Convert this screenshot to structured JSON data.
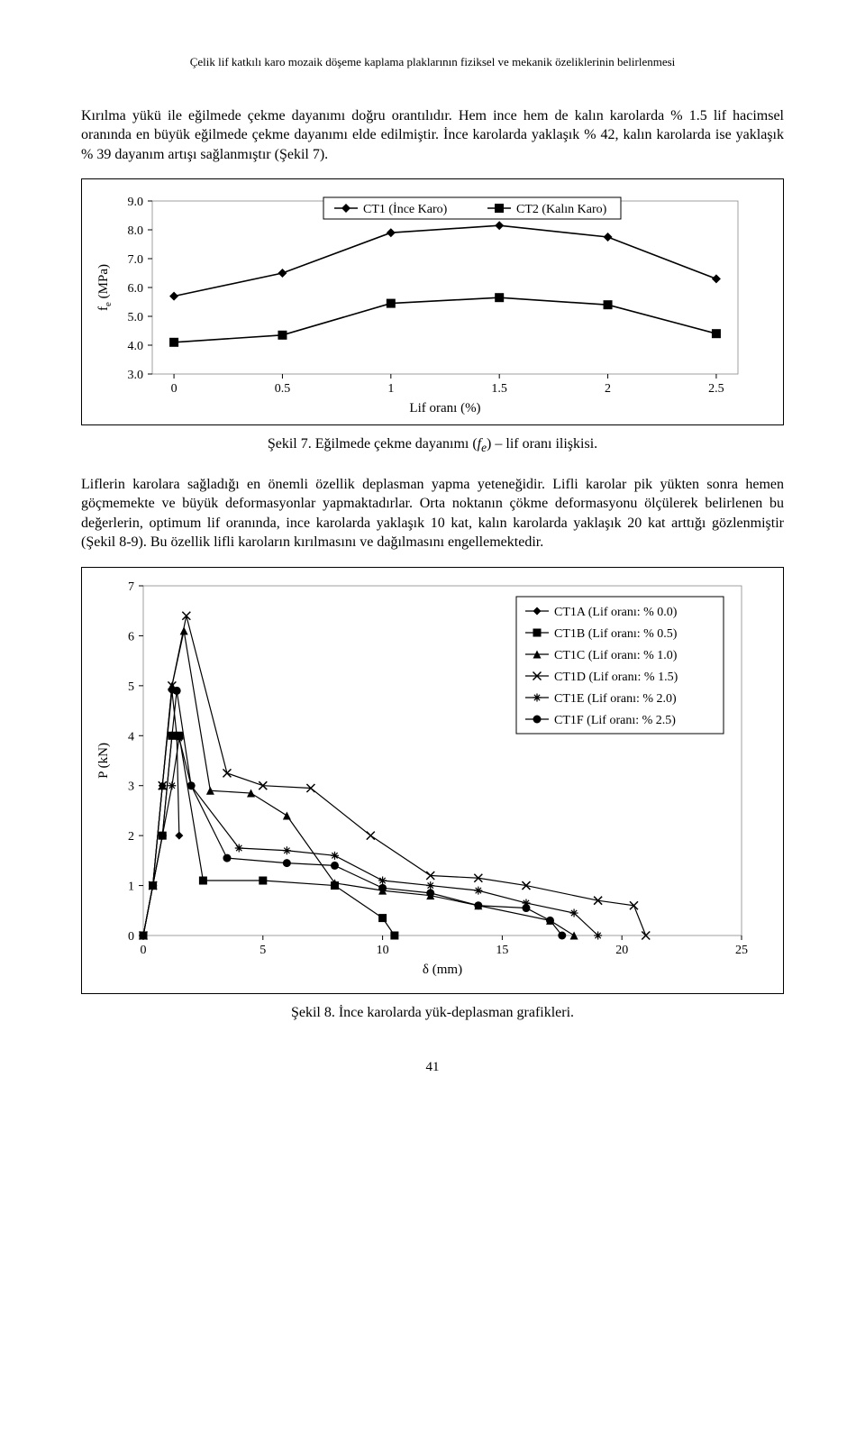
{
  "running_head": "Çelik lif katkılı karo mozaik döşeme kaplama plaklarının fiziksel ve mekanik özeliklerinin belirlenmesi",
  "para1": "Kırılma yükü ile eğilmede çekme dayanımı doğru orantılıdır. Hem ince hem de kalın karolarda % 1.5 lif hacimsel oranında en büyük eğilmede çekme dayanımı elde edilmiştir. İnce karolarda yaklaşık % 42, kalın karolarda ise yaklaşık % 39 dayanım artışı sağlanmıştır   (Şekil 7).",
  "para2": "Liflerin karolara sağladığı en önemli özellik deplasman yapma yeteneğidir. Lifli karolar pik yükten sonra hemen göçmemekte ve büyük deformasyonlar yapmaktadırlar. Orta noktanın çökme deformasyonu ölçülerek belirlenen bu değerlerin, optimum lif oranında, ince karolarda yaklaşık 10 kat, kalın karolarda yaklaşık 20 kat arttığı gözlenmiştir (Şekil 8-9). Bu özellik lifli karoların kırılmasını ve dağılmasını engellemektedir.",
  "fig7_caption_pre": "Şekil 7. Eğilmede çekme dayanımı (",
  "fig7_caption_fe": "f",
  "fig7_caption_sub": "e",
  "fig7_caption_post": ") – lif oranı ilişkisi.",
  "fig8_caption": "Şekil 8. İnce karolarda yük-deplasman grafikleri.",
  "page_number": "41",
  "chart1": {
    "type": "line",
    "xlabel": "Lif oranı (%)",
    "ylabel": "f",
    "ylabel_sub": "e",
    "ylabel_unit": " (MPa)",
    "xlim": [
      -0.1,
      2.6
    ],
    "ylim": [
      3.0,
      9.0
    ],
    "xticks": [
      0,
      0.5,
      1,
      1.5,
      2,
      2.5
    ],
    "xtick_labels": [
      "0",
      "0.5",
      "1",
      "1.5",
      "2",
      "2.5"
    ],
    "yticks": [
      3.0,
      4.0,
      5.0,
      6.0,
      7.0,
      8.0,
      9.0
    ],
    "ytick_labels": [
      "3.0",
      "4.0",
      "5.0",
      "6.0",
      "7.0",
      "8.0",
      "9.0"
    ],
    "series": [
      {
        "name": "CT1 (İnce Karo)",
        "marker": "diamond",
        "x": [
          0,
          0.5,
          1,
          1.5,
          2,
          2.5
        ],
        "y": [
          5.7,
          6.5,
          7.9,
          8.15,
          7.75,
          6.3
        ]
      },
      {
        "name": "CT2 (Kalın Karo)",
        "marker": "square",
        "x": [
          0,
          0.5,
          1,
          1.5,
          2,
          2.5
        ],
        "y": [
          4.1,
          4.35,
          5.45,
          5.65,
          5.4,
          4.4
        ]
      }
    ],
    "line_color": "#000000",
    "marker_fill": "#000000",
    "marker_size": 10,
    "line_width": 1.6,
    "background_color": "#ffffff",
    "axis_fontsize": 14,
    "label_fontsize": 15
  },
  "chart2": {
    "type": "line",
    "xlabel": "δ (mm)",
    "ylabel": "P (kN)",
    "xlim": [
      0,
      25
    ],
    "ylim": [
      0,
      7
    ],
    "xticks": [
      0,
      5,
      10,
      15,
      20,
      25
    ],
    "xtick_labels": [
      "0",
      "5",
      "10",
      "15",
      "20",
      "25"
    ],
    "yticks": [
      0,
      1,
      2,
      3,
      4,
      5,
      6,
      7
    ],
    "ytick_labels": [
      "0",
      "1",
      "2",
      "3",
      "4",
      "5",
      "6",
      "7"
    ],
    "legend_items": [
      {
        "label": "CT1A (Lif oranı: % 0.0)",
        "marker": "diamond"
      },
      {
        "label": "CT1B (Lif oranı: % 0.5)",
        "marker": "square"
      },
      {
        "label": "CT1C (Lif oranı: % 1.0)",
        "marker": "triangle"
      },
      {
        "label": "CT1D (Lif oranı: % 1.5)",
        "marker": "x"
      },
      {
        "label": "CT1E (Lif oranı: % 2.0)",
        "marker": "asterisk"
      },
      {
        "label": "CT1F (Lif oranı: % 2.5)",
        "marker": "circle"
      }
    ],
    "series": {
      "CT1A": {
        "marker": "diamond",
        "pts": [
          [
            0,
            0
          ],
          [
            0.4,
            1.0
          ],
          [
            0.8,
            3.0
          ],
          [
            1.2,
            4.9
          ],
          [
            1.4,
            4.0
          ],
          [
            1.5,
            2.0
          ]
        ]
      },
      "CT1B": {
        "marker": "square",
        "pts": [
          [
            0,
            0
          ],
          [
            0.4,
            1.0
          ],
          [
            0.8,
            2.0
          ],
          [
            1.2,
            4.0
          ],
          [
            1.5,
            4.0
          ],
          [
            2.5,
            1.1
          ],
          [
            5,
            1.1
          ],
          [
            8,
            1.0
          ],
          [
            10,
            0.35
          ],
          [
            10.5,
            0
          ]
        ]
      },
      "CT1C": {
        "marker": "triangle",
        "pts": [
          [
            0,
            0
          ],
          [
            0.4,
            1.0
          ],
          [
            0.8,
            3.0
          ],
          [
            1.2,
            5.0
          ],
          [
            1.7,
            6.1
          ],
          [
            2.8,
            2.9
          ],
          [
            4.5,
            2.85
          ],
          [
            6,
            2.4
          ],
          [
            8,
            1.05
          ],
          [
            10,
            0.9
          ],
          [
            12,
            0.8
          ],
          [
            14,
            0.6
          ],
          [
            17,
            0.3
          ],
          [
            18,
            0
          ]
        ]
      },
      "CT1D": {
        "marker": "x",
        "pts": [
          [
            0,
            0
          ],
          [
            0.4,
            1.0
          ],
          [
            0.8,
            3.0
          ],
          [
            1.2,
            5.0
          ],
          [
            1.8,
            6.4
          ],
          [
            3.5,
            3.25
          ],
          [
            5,
            3.0
          ],
          [
            7,
            2.95
          ],
          [
            9.5,
            2.0
          ],
          [
            12,
            1.2
          ],
          [
            14,
            1.15
          ],
          [
            16,
            1.0
          ],
          [
            19,
            0.7
          ],
          [
            20.5,
            0.6
          ],
          [
            21,
            0
          ]
        ]
      },
      "CT1E": {
        "marker": "asterisk",
        "pts": [
          [
            0,
            0
          ],
          [
            0.4,
            1.0
          ],
          [
            0.8,
            2.0
          ],
          [
            1.2,
            3.0
          ],
          [
            1.5,
            3.95
          ],
          [
            2.0,
            3.0
          ],
          [
            4,
            1.75
          ],
          [
            6,
            1.7
          ],
          [
            8,
            1.6
          ],
          [
            10,
            1.1
          ],
          [
            12,
            1.0
          ],
          [
            14,
            0.9
          ],
          [
            16,
            0.65
          ],
          [
            18,
            0.45
          ],
          [
            19,
            0
          ]
        ]
      },
      "CT1F": {
        "marker": "circle",
        "pts": [
          [
            0,
            0
          ],
          [
            0.4,
            1.0
          ],
          [
            0.8,
            2.0
          ],
          [
            1.2,
            4.0
          ],
          [
            1.4,
            4.9
          ],
          [
            2.0,
            3.0
          ],
          [
            3.5,
            1.55
          ],
          [
            6,
            1.45
          ],
          [
            8,
            1.4
          ],
          [
            10,
            0.95
          ],
          [
            12,
            0.85
          ],
          [
            14,
            0.6
          ],
          [
            16,
            0.55
          ],
          [
            17,
            0.3
          ],
          [
            17.5,
            0
          ]
        ]
      }
    },
    "line_color": "#000000",
    "marker_fill": "#000000",
    "marker_size": 9,
    "line_width": 1.2,
    "background_color": "#ffffff",
    "axis_fontsize": 14,
    "label_fontsize": 15
  }
}
